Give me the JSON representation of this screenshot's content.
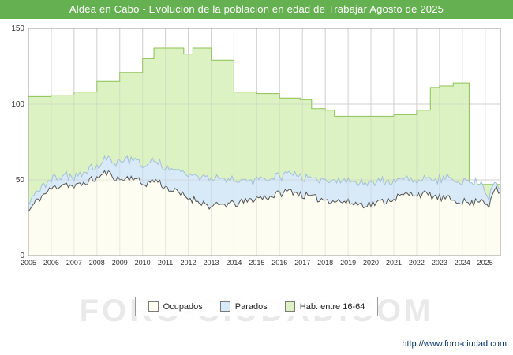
{
  "title_bar": {
    "text": "Aldea en Cabo - Evolucion de la poblacion en edad de Trabajar Agosto de 2025",
    "bg": "#65b050",
    "fg": "#ffffff"
  },
  "watermark": "FORO-CIUDAD.COM",
  "footer": {
    "url": "http://www.foro-ciudad.com"
  },
  "chart_data": {
    "type": "area",
    "title": "Aldea en Cabo - Evolucion de la poblacion en edad de Trabajar Agosto de 2025",
    "x_range": [
      2005,
      2025.667
    ],
    "ylim": [
      0,
      150
    ],
    "yticks": [
      0,
      50,
      100,
      150
    ],
    "x_tick_labels": [
      "2005",
      "2006",
      "2007",
      "2008",
      "2009",
      "2010",
      "2011",
      "2012",
      "2013",
      "2014",
      "2015",
      "2016",
      "2017",
      "2018",
      "2019",
      "2020",
      "2021",
      "2022",
      "2023",
      "2024",
      "2025"
    ],
    "grid": true,
    "legend_position": "bottom",
    "legend": [
      {
        "key": "ocupados",
        "label": "Ocupados"
      },
      {
        "key": "parados",
        "label": "Parados"
      },
      {
        "key": "hab_16_64",
        "label": "Hab. entre 16-64"
      }
    ],
    "series": {
      "hab_16_64": {
        "name": "Hab. entre 16-64",
        "render": "step-area",
        "fill": "#dcf2c3",
        "stroke": "#8cc152",
        "steps": [
          [
            2005,
            105
          ],
          [
            2006,
            106
          ],
          [
            2007,
            108
          ],
          [
            2008,
            115
          ],
          [
            2009,
            121
          ],
          [
            2010,
            130
          ],
          [
            2010.5,
            137
          ],
          [
            2011.8,
            133
          ],
          [
            2012.2,
            137
          ],
          [
            2013,
            129
          ],
          [
            2014,
            108
          ],
          [
            2015,
            107
          ],
          [
            2016,
            104
          ],
          [
            2016.9,
            103
          ],
          [
            2017.4,
            97
          ],
          [
            2018,
            96
          ],
          [
            2018.4,
            92
          ],
          [
            2019,
            92
          ],
          [
            2020,
            92
          ],
          [
            2021,
            93
          ],
          [
            2022,
            96
          ],
          [
            2022.6,
            111
          ],
          [
            2023,
            112
          ],
          [
            2023.6,
            114
          ],
          [
            2024.3,
            47
          ]
        ]
      },
      "ocupados": {
        "name": "Ocupados",
        "render": "area",
        "fill": "#fdfdf2",
        "stroke": "#555555",
        "noise": 5,
        "anchors": [
          [
            2005,
            29
          ],
          [
            2005.4,
            37
          ],
          [
            2006,
            44
          ],
          [
            2006.6,
            48
          ],
          [
            2007,
            45
          ],
          [
            2007.6,
            49
          ],
          [
            2008,
            51
          ],
          [
            2008.4,
            55
          ],
          [
            2009,
            50
          ],
          [
            2009.6,
            52
          ],
          [
            2010,
            47
          ],
          [
            2010.6,
            50
          ],
          [
            2011,
            45
          ],
          [
            2011.6,
            41
          ],
          [
            2012,
            38
          ],
          [
            2012.5,
            36
          ],
          [
            2013,
            32
          ],
          [
            2013.6,
            34
          ],
          [
            2014,
            34
          ],
          [
            2014.6,
            36
          ],
          [
            2015,
            38
          ],
          [
            2015.6,
            39
          ],
          [
            2016,
            41
          ],
          [
            2016.5,
            43
          ],
          [
            2017,
            40
          ],
          [
            2017.5,
            38
          ],
          [
            2018,
            37
          ],
          [
            2018.6,
            36
          ],
          [
            2019,
            35
          ],
          [
            2019.5,
            34
          ],
          [
            2020,
            34
          ],
          [
            2020.6,
            36
          ],
          [
            2021,
            38
          ],
          [
            2021.5,
            40
          ],
          [
            2022,
            41
          ],
          [
            2022.5,
            40
          ],
          [
            2023,
            38
          ],
          [
            2023.5,
            37
          ],
          [
            2024,
            36
          ],
          [
            2024.4,
            34
          ],
          [
            2024.8,
            38
          ],
          [
            2025.2,
            33
          ],
          [
            2025.4,
            44
          ],
          [
            2025.667,
            41
          ]
        ]
      },
      "parados": {
        "name": "Parados",
        "render": "stacked-area-above-ocupados",
        "fill": "#d8e9f7",
        "stroke": "#a3c0dc",
        "noise": 3.5,
        "anchors": [
          [
            2005,
            6
          ],
          [
            2006,
            6
          ],
          [
            2007,
            6
          ],
          [
            2008,
            7
          ],
          [
            2008.6,
            9
          ],
          [
            2009,
            12
          ],
          [
            2010,
            13
          ],
          [
            2011,
            13
          ],
          [
            2012,
            16
          ],
          [
            2013,
            18
          ],
          [
            2014,
            15
          ],
          [
            2015,
            13
          ],
          [
            2016,
            12
          ],
          [
            2017,
            12
          ],
          [
            2018,
            13
          ],
          [
            2019,
            14
          ],
          [
            2020,
            15
          ],
          [
            2021,
            12
          ],
          [
            2022,
            9
          ],
          [
            2023,
            12
          ],
          [
            2024,
            15
          ],
          [
            2024.8,
            11
          ],
          [
            2025,
            7
          ],
          [
            2025.667,
            3
          ]
        ]
      }
    }
  }
}
